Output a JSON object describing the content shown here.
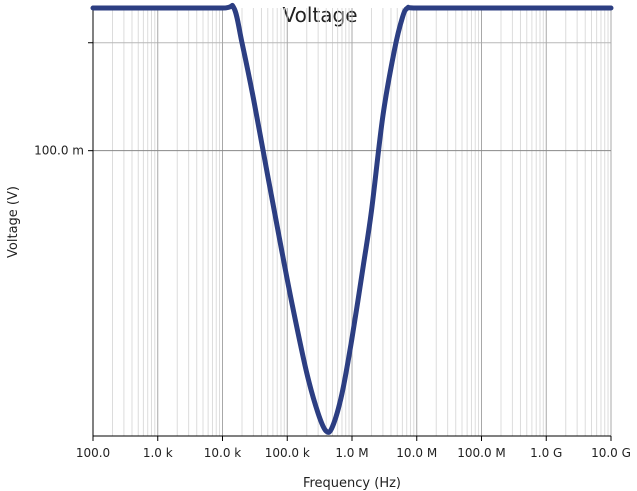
{
  "chart_data": {
    "type": "line",
    "title": "Voltage",
    "xlabel": "Frequency (Hz)",
    "ylabel": "Voltage (V)",
    "x_scale": "log",
    "y_scale": "log",
    "xlim": [
      100,
      10000000000
    ],
    "ylim": [
      0.016,
      0.25
    ],
    "grid": true,
    "x_tick_values": [
      100,
      1000,
      10000,
      100000,
      1000000,
      10000000,
      100000000,
      1000000000,
      10000000000
    ],
    "x_tick_labels": [
      "100.0",
      "1.0 k",
      "10.0 k",
      "100.0 k",
      "1.0 M",
      "10.0 M",
      "100.0 M",
      "1.0 G",
      "10.0 G"
    ],
    "y_tick_values": [
      0.1
    ],
    "y_tick_labels": [
      "100.0 m"
    ],
    "series": [
      {
        "color": "#2c3e82",
        "x": [
          100,
          1000,
          10000,
          15000,
          20000,
          30000,
          50000,
          80000,
          120000,
          200000,
          300000,
          400000,
          500000,
          700000,
          1000000,
          1500000,
          2000000,
          3000000,
          4500000,
          6000000,
          7200000,
          10000000,
          100000000,
          1000000000,
          10000000000
        ],
        "y": [
          0.25,
          0.25,
          0.25,
          0.25,
          0.2,
          0.14,
          0.085,
          0.054,
          0.037,
          0.024,
          0.0185,
          0.0165,
          0.017,
          0.021,
          0.03,
          0.048,
          0.068,
          0.125,
          0.19,
          0.235,
          0.25,
          0.25,
          0.25,
          0.25,
          0.25
        ]
      }
    ]
  }
}
